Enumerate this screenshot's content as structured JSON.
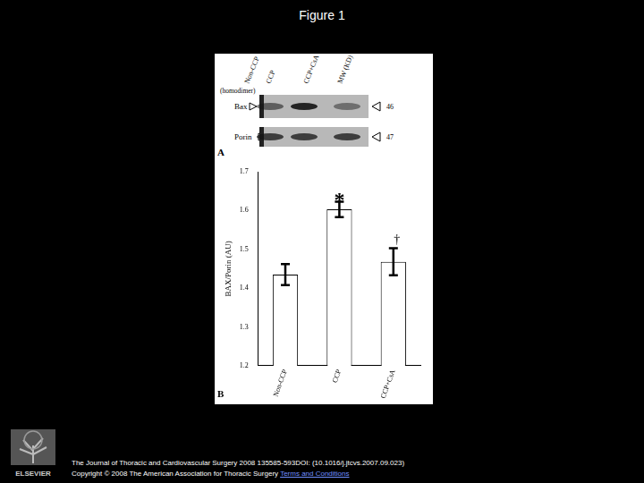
{
  "slide_title": "Figure 1",
  "panel_labels": [
    "A",
    "B"
  ],
  "blot": {
    "lanes": [
      "Non-CCP",
      "CCP",
      "CCP+CsA"
    ],
    "mw_header": "MW (KD)",
    "note": "(homodimer)",
    "rows": [
      {
        "name": "Bax",
        "mw": "46"
      },
      {
        "name": "Porin",
        "mw": "47"
      }
    ]
  },
  "chart_data": {
    "type": "bar",
    "categories": [
      "Non-CCP",
      "CCP",
      "CCP+CsA"
    ],
    "values": [
      1.435,
      1.603,
      1.468
    ],
    "errors": [
      0.027,
      0.02,
      0.035
    ],
    "color": "#ffffff",
    "y_label": "BAX/Porin (AU)",
    "ylim": [
      1.2,
      1.7
    ],
    "yticks": [
      1.2,
      1.3,
      1.4,
      1.5,
      1.6,
      1.7
    ],
    "grid": false,
    "annotations": [
      {
        "text": "*",
        "category": "CCP"
      },
      {
        "text": "†",
        "category": "CCP+CsA"
      }
    ]
  },
  "footer": {
    "journal": "The Journal of Thoracic and Cardiovascular Surgery 2008 135585-593DOI: (10.1016/j.jtcvs.2007.09.023)",
    "copyright": "Copyright © 2008 The American Association for Thoracic Surgery",
    "terms": "Terms and Conditions",
    "publisher": "ELSEVIER"
  }
}
